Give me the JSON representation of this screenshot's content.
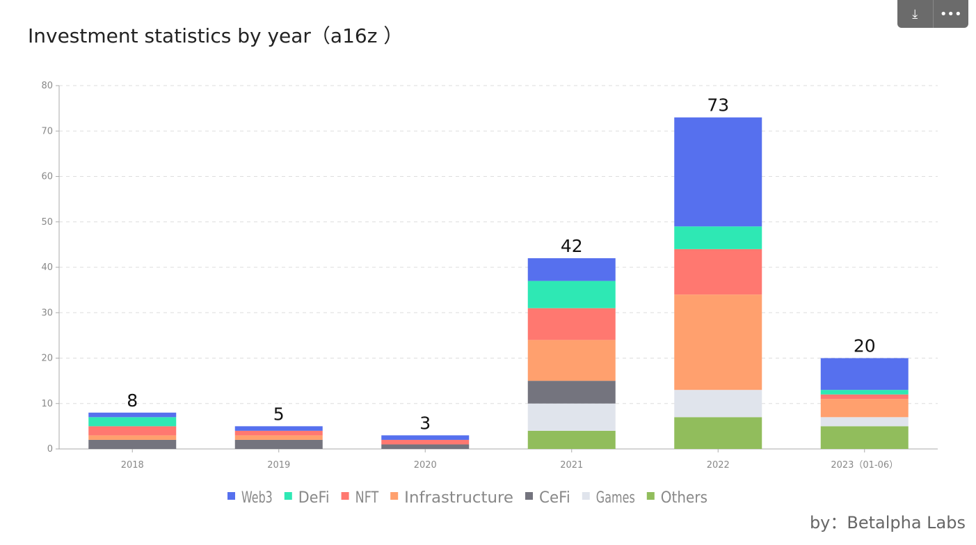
{
  "title": "Investment statistics by year（a16z ）",
  "credit": "by：Betalpha Labs",
  "toolbar": {
    "download_icon": "download-icon",
    "more_icon": "more-icon"
  },
  "chart_data": {
    "type": "bar",
    "stacked": true,
    "categories": [
      "2018",
      "2019",
      "2020",
      "2021",
      "2022",
      "2023（01-06）"
    ],
    "totals": [
      8,
      5,
      3,
      42,
      73,
      20
    ],
    "series": [
      {
        "name": "Others",
        "color": "#91bd5c",
        "values": [
          0,
          0,
          0,
          4,
          7,
          5
        ]
      },
      {
        "name": "Games",
        "color": "#e0e4ec",
        "values": [
          0,
          0,
          0,
          6,
          6,
          2
        ]
      },
      {
        "name": "CeFi",
        "color": "#74747e",
        "values": [
          2,
          2,
          1,
          5,
          0,
          0
        ]
      },
      {
        "name": "Infrastructure",
        "color": "#ffa06e",
        "values": [
          1,
          1,
          0,
          9,
          21,
          4
        ]
      },
      {
        "name": "NFT",
        "color": "#ff7870",
        "values": [
          2,
          1,
          1,
          7,
          10,
          1
        ]
      },
      {
        "name": "DeFi",
        "color": "#2ee8b4",
        "values": [
          2,
          0,
          0,
          6,
          5,
          1
        ]
      },
      {
        "name": "Web3",
        "color": "#5670ee",
        "values": [
          1,
          1,
          1,
          5,
          24,
          7
        ]
      }
    ],
    "legend_order": [
      "Web3",
      "DeFi",
      "NFT",
      "Infrastructure",
      "CeFi",
      "Games",
      "Others"
    ],
    "yticks": [
      "0",
      "10",
      "20",
      "30",
      "40",
      "50",
      "60",
      "70",
      "80"
    ],
    "ylim": [
      0,
      80
    ],
    "grid": true,
    "legend_placement": "bottom"
  }
}
